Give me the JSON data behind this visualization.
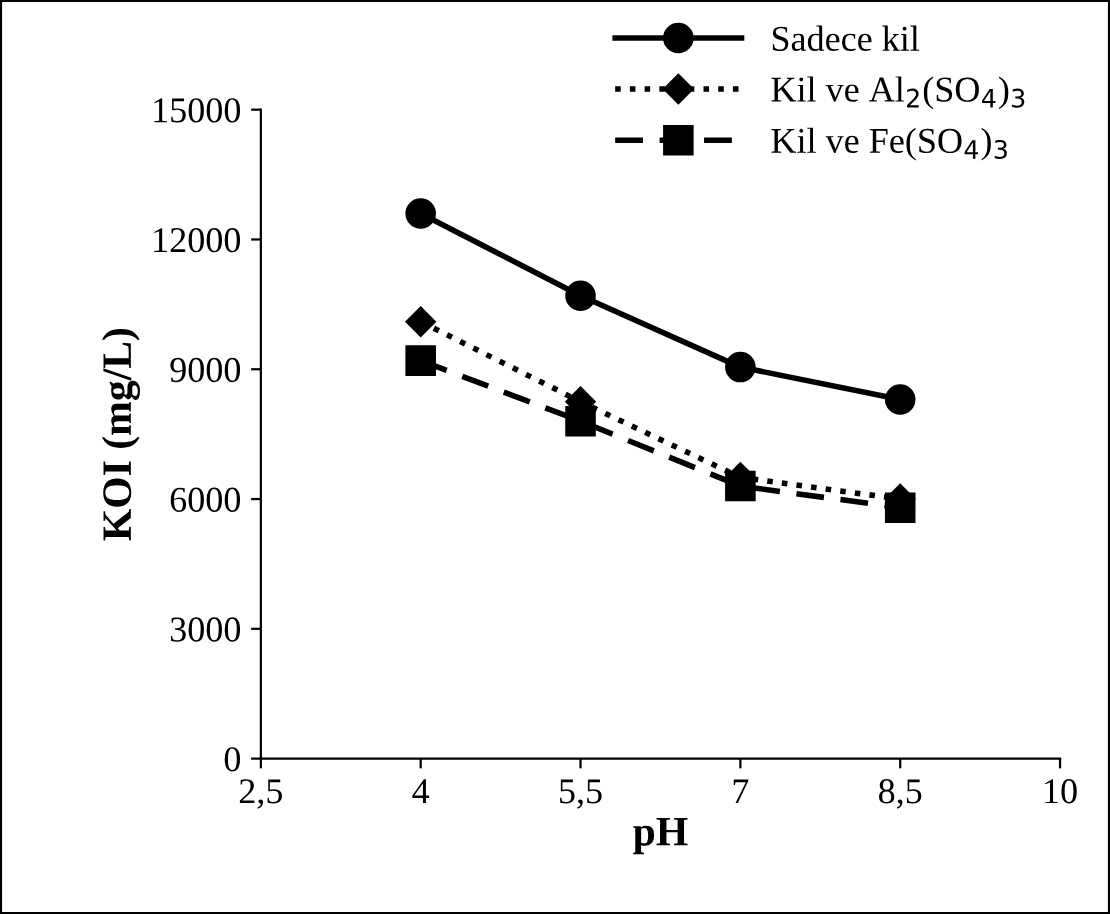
{
  "chart_data": {
    "type": "line",
    "xlabel": "pH",
    "ylabel": "KOI (mg/L)",
    "x": [
      4,
      5.5,
      7,
      8.5
    ],
    "series": [
      {
        "name": "Sadece kil",
        "color": "#000000",
        "values": [
          12600,
          10700,
          9050,
          8300
        ],
        "marker": "circle",
        "line_style": "solid"
      },
      {
        "name": "Kil ve Al$_{2}$(SO$_{4}$)$_{3}$",
        "color": "#000000",
        "values": [
          10100,
          8250,
          6500,
          6000
        ],
        "marker": "diamond",
        "line_style": "dotted"
      },
      {
        "name": "Kil ve Fe(SO$_{4}$)$_{3}$",
        "color": "#000000",
        "values": [
          9200,
          7800,
          6300,
          5800
        ],
        "marker": "square",
        "line_style": "dashed"
      }
    ],
    "xlim": [
      2.5,
      10
    ],
    "xticks": [
      {
        "value": 2.5,
        "label": "2,5"
      },
      4,
      {
        "value": 5.5,
        "label": "5,5"
      },
      7,
      {
        "value": 8.5,
        "label": "8,5"
      },
      10
    ],
    "ylim": [
      0,
      15000
    ],
    "yticks": [
      0,
      3000,
      6000,
      9000,
      12000,
      15000
    ],
    "grid": false,
    "legend": "top right"
  }
}
